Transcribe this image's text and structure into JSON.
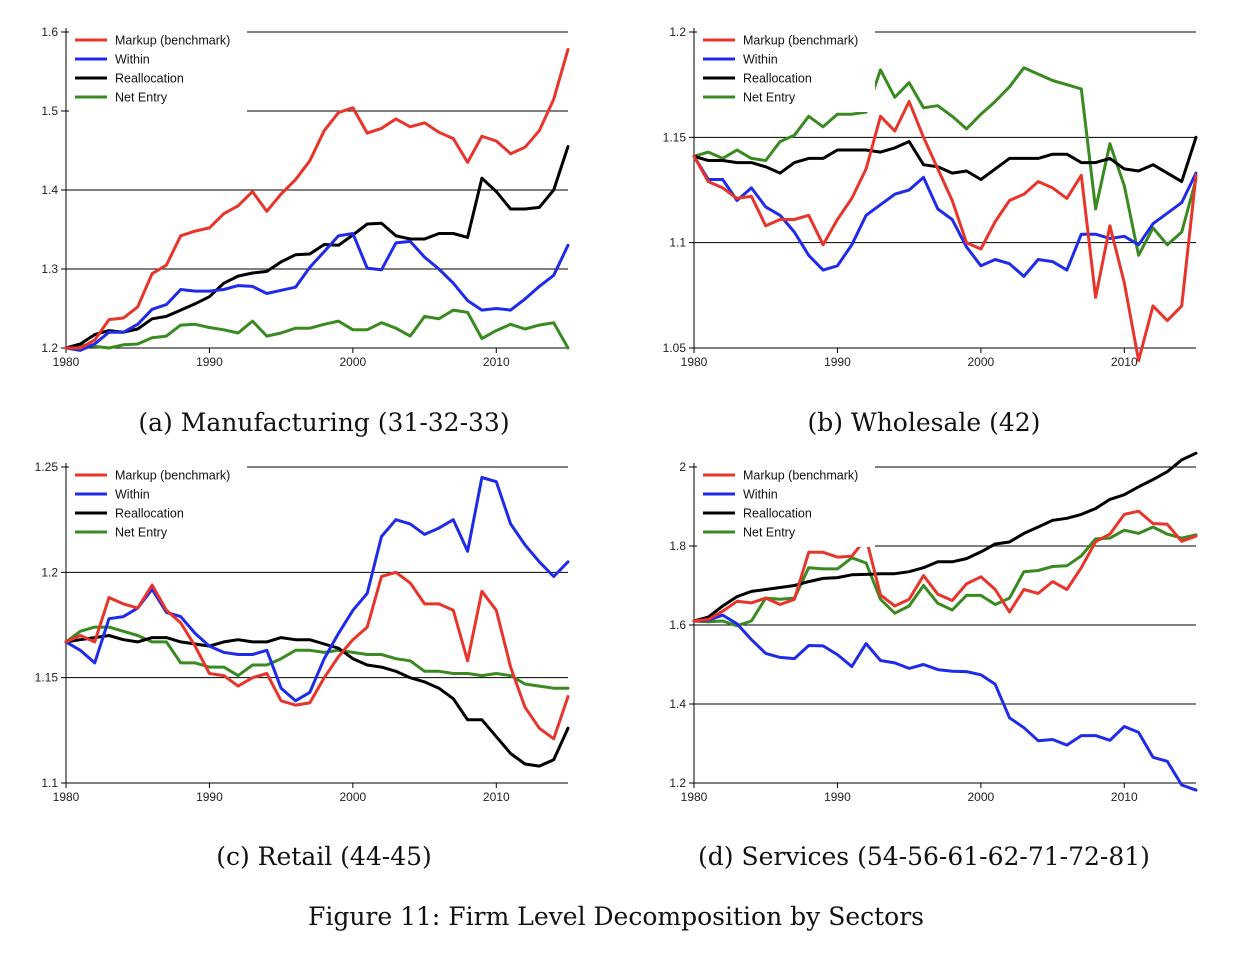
{
  "figure": {
    "title": "Figure 11: Firm Level Decomposition by Sectors"
  },
  "colors": {
    "markup": "#e8352b",
    "within": "#1f2be8",
    "reallocation": "#000000",
    "net_entry": "#3a8a22"
  },
  "chart_data": [
    {
      "type": "line",
      "caption": "(a) Manufacturing (31-32-33)",
      "xlim": [
        1980,
        2015
      ],
      "xticks": [
        1980,
        1990,
        2000,
        2010
      ],
      "ylim": [
        1.2,
        1.6
      ],
      "yticks": [
        "1.2",
        "1.3",
        "1.4",
        "1.5",
        "1.6"
      ],
      "grid": true,
      "legend_position": "top-left",
      "x": [
        1980,
        1981,
        1982,
        1983,
        1984,
        1985,
        1986,
        1987,
        1988,
        1989,
        1990,
        1991,
        1992,
        1993,
        1994,
        1995,
        1996,
        1997,
        1998,
        1999,
        2000,
        2001,
        2002,
        2003,
        2004,
        2005,
        2006,
        2007,
        2008,
        2009,
        2010,
        2011,
        2012,
        2013,
        2014,
        2015
      ],
      "series": [
        {
          "name": "Markup (benchmark)",
          "key": "markup",
          "values": [
            1.2,
            1.2,
            1.21,
            1.236,
            1.238,
            1.252,
            1.294,
            1.305,
            1.342,
            1.348,
            1.352,
            1.37,
            1.38,
            1.398,
            1.373,
            1.395,
            1.413,
            1.437,
            1.475,
            1.498,
            1.504,
            1.472,
            1.478,
            1.49,
            1.48,
            1.485,
            1.473,
            1.465,
            1.435,
            1.468,
            1.462,
            1.446,
            1.454,
            1.475,
            1.515,
            1.578
          ]
        },
        {
          "name": "Within",
          "key": "within",
          "values": [
            1.2,
            1.197,
            1.205,
            1.22,
            1.22,
            1.23,
            1.249,
            1.255,
            1.274,
            1.272,
            1.272,
            1.274,
            1.279,
            1.278,
            1.269,
            1.273,
            1.277,
            1.302,
            1.322,
            1.342,
            1.345,
            1.301,
            1.299,
            1.333,
            1.335,
            1.315,
            1.3,
            1.282,
            1.26,
            1.248,
            1.25,
            1.248,
            1.262,
            1.278,
            1.292,
            1.33
          ]
        },
        {
          "name": "Reallocation",
          "key": "reallocation",
          "values": [
            1.2,
            1.205,
            1.217,
            1.222,
            1.22,
            1.224,
            1.237,
            1.24,
            1.248,
            1.256,
            1.265,
            1.282,
            1.291,
            1.295,
            1.297,
            1.309,
            1.318,
            1.319,
            1.331,
            1.33,
            1.343,
            1.357,
            1.358,
            1.342,
            1.338,
            1.338,
            1.345,
            1.345,
            1.34,
            1.415,
            1.398,
            1.376,
            1.376,
            1.378,
            1.4,
            1.455
          ]
        },
        {
          "name": "Net Entry",
          "key": "net_entry",
          "values": [
            1.2,
            1.204,
            1.202,
            1.2,
            1.204,
            1.205,
            1.213,
            1.215,
            1.229,
            1.23,
            1.226,
            1.223,
            1.219,
            1.234,
            1.215,
            1.219,
            1.225,
            1.225,
            1.23,
            1.234,
            1.223,
            1.223,
            1.232,
            1.225,
            1.215,
            1.24,
            1.237,
            1.248,
            1.245,
            1.212,
            1.222,
            1.23,
            1.224,
            1.229,
            1.232,
            1.2
          ]
        }
      ]
    },
    {
      "type": "line",
      "caption": "(b) Wholesale (42)",
      "xlim": [
        1980,
        2015
      ],
      "xticks": [
        1980,
        1990,
        2000,
        2010
      ],
      "ylim": [
        1.05,
        1.2
      ],
      "yticks": [
        "1.05",
        "1.1",
        "1.15",
        "1.2"
      ],
      "grid": true,
      "legend_position": "top-left",
      "x": [
        1980,
        1981,
        1982,
        1983,
        1984,
        1985,
        1986,
        1987,
        1988,
        1989,
        1990,
        1991,
        1992,
        1993,
        1994,
        1995,
        1996,
        1997,
        1998,
        1999,
        2000,
        2001,
        2002,
        2003,
        2004,
        2005,
        2006,
        2007,
        2008,
        2009,
        2010,
        2011,
        2012,
        2013,
        2014,
        2015
      ],
      "series": [
        {
          "name": "Markup (benchmark)",
          "key": "markup",
          "values": [
            1.141,
            1.129,
            1.126,
            1.121,
            1.122,
            1.108,
            1.111,
            1.111,
            1.113,
            1.099,
            1.111,
            1.121,
            1.135,
            1.16,
            1.153,
            1.167,
            1.15,
            1.135,
            1.12,
            1.1,
            1.097,
            1.11,
            1.12,
            1.123,
            1.129,
            1.126,
            1.121,
            1.132,
            1.074,
            1.108,
            1.081,
            1.044,
            1.07,
            1.063,
            1.07,
            1.132
          ]
        },
        {
          "name": "Within",
          "key": "within",
          "values": [
            1.141,
            1.13,
            1.13,
            1.12,
            1.126,
            1.117,
            1.113,
            1.105,
            1.094,
            1.087,
            1.089,
            1.099,
            1.113,
            1.118,
            1.123,
            1.125,
            1.131,
            1.116,
            1.111,
            1.098,
            1.089,
            1.092,
            1.09,
            1.084,
            1.092,
            1.091,
            1.087,
            1.104,
            1.104,
            1.102,
            1.103,
            1.099,
            1.109,
            1.114,
            1.119,
            1.133
          ]
        },
        {
          "name": "Reallocation",
          "key": "reallocation",
          "values": [
            1.141,
            1.139,
            1.139,
            1.138,
            1.138,
            1.136,
            1.133,
            1.138,
            1.14,
            1.14,
            1.144,
            1.144,
            1.144,
            1.143,
            1.145,
            1.148,
            1.137,
            1.136,
            1.133,
            1.134,
            1.13,
            1.135,
            1.14,
            1.14,
            1.14,
            1.142,
            1.142,
            1.138,
            1.138,
            1.14,
            1.135,
            1.134,
            1.137,
            1.133,
            1.129,
            1.15
          ]
        },
        {
          "name": "Net Entry",
          "key": "net_entry",
          "values": [
            1.141,
            1.143,
            1.14,
            1.144,
            1.14,
            1.139,
            1.148,
            1.151,
            1.16,
            1.155,
            1.161,
            1.161,
            1.162,
            1.182,
            1.169,
            1.176,
            1.164,
            1.165,
            1.16,
            1.154,
            1.161,
            1.167,
            1.174,
            1.183,
            1.18,
            1.177,
            1.175,
            1.173,
            1.116,
            1.147,
            1.127,
            1.094,
            1.107,
            1.099,
            1.105,
            1.13
          ]
        }
      ]
    },
    {
      "type": "line",
      "caption": "(c) Retail (44-45)",
      "xlim": [
        1980,
        2015
      ],
      "xticks": [
        1980,
        1990,
        2000,
        2010
      ],
      "ylim": [
        1.1,
        1.25
      ],
      "yticks": [
        "1.1",
        "1.15",
        "1.2",
        "1.25"
      ],
      "grid": true,
      "legend_position": "top-left",
      "x": [
        1980,
        1981,
        1982,
        1983,
        1984,
        1985,
        1986,
        1987,
        1988,
        1989,
        1990,
        1991,
        1992,
        1993,
        1994,
        1995,
        1996,
        1997,
        1998,
        1999,
        2000,
        2001,
        2002,
        2003,
        2004,
        2005,
        2006,
        2007,
        2008,
        2009,
        2010,
        2011,
        2012,
        2013,
        2014,
        2015
      ],
      "series": [
        {
          "name": "Markup (benchmark)",
          "key": "markup",
          "values": [
            1.167,
            1.17,
            1.167,
            1.188,
            1.185,
            1.183,
            1.194,
            1.182,
            1.176,
            1.165,
            1.152,
            1.151,
            1.146,
            1.15,
            1.152,
            1.139,
            1.137,
            1.138,
            1.15,
            1.16,
            1.168,
            1.174,
            1.198,
            1.2,
            1.195,
            1.185,
            1.185,
            1.182,
            1.158,
            1.191,
            1.182,
            1.155,
            1.136,
            1.126,
            1.121,
            1.141
          ]
        },
        {
          "name": "Within",
          "key": "within",
          "values": [
            1.167,
            1.163,
            1.157,
            1.178,
            1.179,
            1.183,
            1.192,
            1.181,
            1.179,
            1.171,
            1.165,
            1.162,
            1.161,
            1.161,
            1.163,
            1.145,
            1.139,
            1.143,
            1.159,
            1.171,
            1.182,
            1.19,
            1.217,
            1.225,
            1.223,
            1.218,
            1.221,
            1.225,
            1.21,
            1.245,
            1.243,
            1.223,
            1.213,
            1.205,
            1.198,
            1.205
          ]
        },
        {
          "name": "Reallocation",
          "key": "reallocation",
          "values": [
            1.167,
            1.168,
            1.169,
            1.17,
            1.168,
            1.167,
            1.169,
            1.169,
            1.167,
            1.166,
            1.165,
            1.167,
            1.168,
            1.167,
            1.167,
            1.169,
            1.168,
            1.168,
            1.166,
            1.164,
            1.159,
            1.156,
            1.155,
            1.153,
            1.15,
            1.148,
            1.145,
            1.14,
            1.13,
            1.13,
            1.122,
            1.114,
            1.109,
            1.108,
            1.111,
            1.126
          ]
        },
        {
          "name": "Net Entry",
          "key": "net_entry",
          "values": [
            1.167,
            1.172,
            1.174,
            1.174,
            1.172,
            1.17,
            1.167,
            1.167,
            1.157,
            1.157,
            1.155,
            1.155,
            1.151,
            1.156,
            1.156,
            1.159,
            1.163,
            1.163,
            1.162,
            1.163,
            1.162,
            1.161,
            1.161,
            1.159,
            1.158,
            1.153,
            1.153,
            1.152,
            1.152,
            1.151,
            1.152,
            1.151,
            1.147,
            1.146,
            1.145,
            1.145
          ]
        }
      ]
    },
    {
      "type": "line",
      "caption": "(d) Services (54-56-61-62-71-72-81)",
      "xlim": [
        1980,
        2015
      ],
      "xticks": [
        1980,
        1990,
        2000,
        2010
      ],
      "ylim": [
        1.2,
        2.0
      ],
      "yticks": [
        "1.2",
        "1.4",
        "1.6",
        "1.8",
        "2"
      ],
      "grid": true,
      "legend_position": "top-left",
      "x": [
        1980,
        1981,
        1982,
        1983,
        1984,
        1985,
        1986,
        1987,
        1988,
        1989,
        1990,
        1991,
        1992,
        1993,
        1994,
        1995,
        1996,
        1997,
        1998,
        1999,
        2000,
        2001,
        2002,
        2003,
        2004,
        2005,
        2006,
        2007,
        2008,
        2009,
        2010,
        2011,
        2012,
        2013,
        2014,
        2015
      ],
      "series": [
        {
          "name": "Markup (benchmark)",
          "key": "markup",
          "values": [
            1.61,
            1.614,
            1.635,
            1.66,
            1.656,
            1.668,
            1.652,
            1.665,
            1.784,
            1.784,
            1.772,
            1.774,
            1.82,
            1.676,
            1.648,
            1.665,
            1.725,
            1.678,
            1.662,
            1.704,
            1.722,
            1.69,
            1.633,
            1.69,
            1.68,
            1.71,
            1.69,
            1.745,
            1.811,
            1.83,
            1.88,
            1.888,
            1.857,
            1.855,
            1.812,
            1.825
          ]
        },
        {
          "name": "Within",
          "key": "within",
          "values": [
            1.61,
            1.612,
            1.625,
            1.603,
            1.563,
            1.528,
            1.518,
            1.515,
            1.548,
            1.547,
            1.525,
            1.495,
            1.553,
            1.51,
            1.504,
            1.49,
            1.5,
            1.487,
            1.483,
            1.482,
            1.474,
            1.45,
            1.365,
            1.34,
            1.307,
            1.31,
            1.296,
            1.32,
            1.32,
            1.308,
            1.343,
            1.328,
            1.265,
            1.255,
            1.195,
            1.182
          ]
        },
        {
          "name": "Reallocation",
          "key": "reallocation",
          "values": [
            1.61,
            1.62,
            1.648,
            1.672,
            1.685,
            1.69,
            1.695,
            1.7,
            1.71,
            1.718,
            1.72,
            1.727,
            1.728,
            1.73,
            1.73,
            1.735,
            1.745,
            1.76,
            1.76,
            1.768,
            1.785,
            1.805,
            1.81,
            1.832,
            1.848,
            1.865,
            1.87,
            1.88,
            1.895,
            1.918,
            1.93,
            1.95,
            1.968,
            1.988,
            2.018,
            2.035
          ]
        },
        {
          "name": "Net Entry",
          "key": "net_entry",
          "values": [
            1.61,
            1.608,
            1.61,
            1.598,
            1.61,
            1.668,
            1.665,
            1.668,
            1.745,
            1.742,
            1.742,
            1.77,
            1.757,
            1.665,
            1.63,
            1.648,
            1.7,
            1.655,
            1.638,
            1.675,
            1.675,
            1.652,
            1.668,
            1.735,
            1.738,
            1.748,
            1.75,
            1.775,
            1.818,
            1.82,
            1.84,
            1.832,
            1.848,
            1.83,
            1.82,
            1.828
          ]
        }
      ]
    }
  ]
}
